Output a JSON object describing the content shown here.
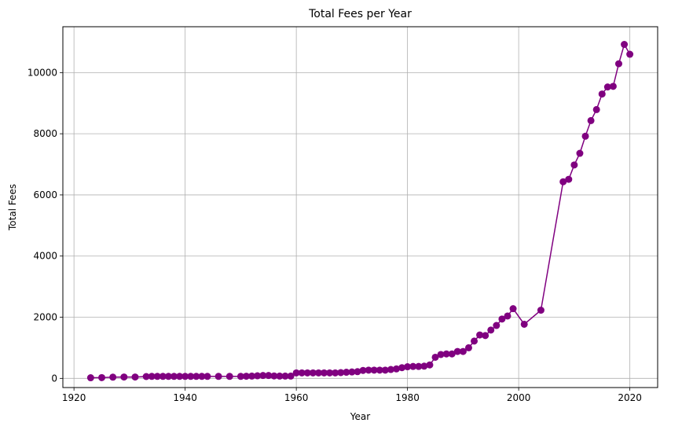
{
  "chart_data": {
    "type": "line",
    "title": "Total Fees per Year",
    "xlabel": "Year",
    "ylabel": "Total Fees",
    "xlim": [
      1918,
      2025
    ],
    "ylim": [
      -300,
      11500
    ],
    "xticks": [
      1920,
      1940,
      1960,
      1980,
      2000,
      2020
    ],
    "yticks": [
      0,
      2000,
      4000,
      6000,
      8000,
      10000
    ],
    "grid": true,
    "line_color": "#800080",
    "marker": "circle",
    "series": [
      {
        "x": [
          1923,
          1925,
          1927,
          1929,
          1931,
          1933,
          1934,
          1935,
          1936,
          1937,
          1938,
          1939,
          1940,
          1941,
          1942,
          1943,
          1944,
          1946,
          1948,
          1950,
          1951,
          1952,
          1953,
          1954,
          1955,
          1956,
          1957,
          1958,
          1959,
          1960,
          1961,
          1962,
          1963,
          1964,
          1965,
          1966,
          1967,
          1968,
          1969,
          1970,
          1971,
          1972,
          1973,
          1974,
          1975,
          1976,
          1977,
          1978,
          1979,
          1980,
          1981,
          1982,
          1983,
          1984,
          1985,
          1986,
          1987,
          1988,
          1989,
          1990,
          1991,
          1992,
          1993,
          1994,
          1995,
          1996,
          1997,
          1998,
          1999,
          2001,
          2004,
          2008,
          2009,
          2010,
          2011,
          2012,
          2013,
          2014,
          2015,
          2016,
          2017,
          2018,
          2019,
          2020
        ],
        "values": [
          20,
          25,
          40,
          45,
          45,
          60,
          65,
          65,
          65,
          65,
          65,
          65,
          65,
          65,
          65,
          65,
          65,
          65,
          65,
          65,
          70,
          75,
          85,
          95,
          95,
          80,
          75,
          75,
          75,
          180,
          180,
          180,
          180,
          180,
          180,
          180,
          180,
          190,
          200,
          210,
          220,
          260,
          270,
          270,
          270,
          270,
          290,
          310,
          350,
          380,
          390,
          390,
          400,
          440,
          690,
          780,
          800,
          800,
          880,
          880,
          1000,
          1220,
          1420,
          1400,
          1580,
          1730,
          1940,
          2040,
          2280,
          1770,
          2230,
          6430,
          6510,
          6980,
          7360,
          7920,
          8430,
          8790,
          9300,
          9530,
          9550,
          10290,
          10920,
          10600
        ]
      }
    ]
  }
}
